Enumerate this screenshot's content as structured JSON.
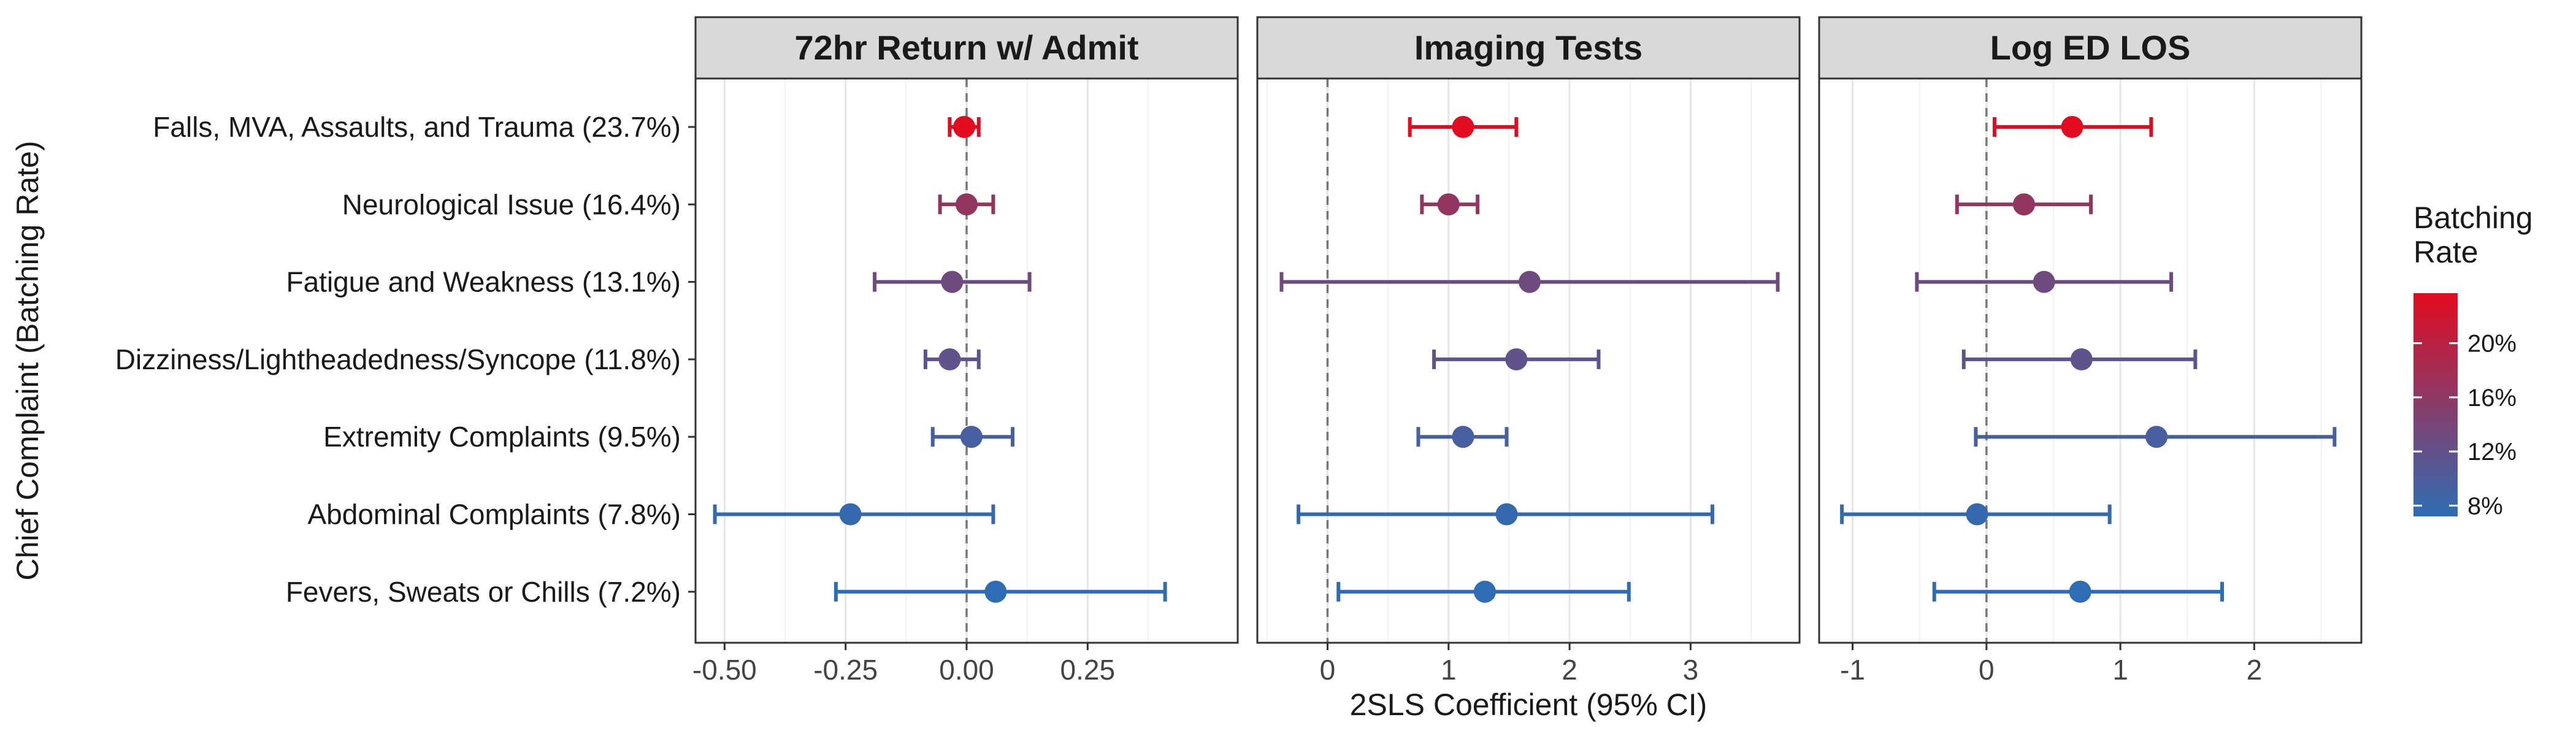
{
  "chart_data": {
    "type": "forest",
    "x_axis_title": "2SLS Coefficient (95% CI)",
    "y_axis_title": "Chief Complaint (Batching Rate)",
    "categories": [
      "Falls, MVA, Assaults, and Trauma (23.7%)",
      "Neurological Issue (16.4%)",
      "Fatigue and Weakness (13.1%)",
      "Dizziness/Lightheadedness/Syncope (11.8%)",
      "Extremity Complaints (9.5%)",
      "Abdominal Complaints (7.8%)",
      "Fevers, Sweats or Chills (7.2%)"
    ],
    "batching_rates": [
      23.7,
      16.4,
      13.1,
      11.8,
      9.5,
      7.8,
      7.2
    ],
    "reference_line_x": 0,
    "panels": [
      {
        "title": "72hr Return w/ Admit",
        "xlim": [
          -0.56,
          0.56
        ],
        "ticks": [
          -0.5,
          -0.25,
          0,
          0.25
        ],
        "tick_labels": [
          "-0.50",
          "-0.25",
          "0.00",
          "0.25"
        ],
        "estimates": [
          -0.005,
          0.0,
          -0.03,
          -0.035,
          0.01,
          -0.24,
          0.06
        ],
        "ci_low": [
          -0.035,
          -0.055,
          -0.19,
          -0.085,
          -0.07,
          -0.52,
          -0.27
        ],
        "ci_high": [
          0.025,
          0.055,
          0.13,
          0.025,
          0.095,
          0.055,
          0.41
        ]
      },
      {
        "title": "Imaging Tests",
        "xlim": [
          -0.58,
          3.9
        ],
        "ticks": [
          0,
          1,
          2,
          3
        ],
        "tick_labels": [
          "0",
          "1",
          "2",
          "3"
        ],
        "estimates": [
          1.12,
          1.0,
          1.67,
          1.56,
          1.12,
          1.48,
          1.3
        ],
        "ci_low": [
          0.68,
          0.78,
          -0.38,
          0.88,
          0.75,
          -0.24,
          0.09
        ],
        "ci_high": [
          1.56,
          1.24,
          3.72,
          2.24,
          1.48,
          3.18,
          2.49
        ]
      },
      {
        "title": "Log ED LOS",
        "xlim": [
          -1.25,
          2.8
        ],
        "ticks": [
          -1,
          0,
          1,
          2
        ],
        "tick_labels": [
          "-1",
          "0",
          "1",
          "2"
        ],
        "estimates": [
          0.64,
          0.28,
          0.43,
          0.71,
          1.27,
          -0.07,
          0.7
        ],
        "ci_low": [
          0.06,
          -0.22,
          -0.52,
          -0.17,
          -0.08,
          -1.08,
          -0.39
        ],
        "ci_high": [
          1.23,
          0.78,
          1.38,
          1.56,
          2.6,
          0.92,
          1.76
        ]
      }
    ],
    "legend": {
      "title_lines": [
        "Batching",
        "Rate"
      ],
      "ticks": [
        8,
        12,
        16,
        20
      ],
      "tick_labels": [
        "8%",
        "12%",
        "16%",
        "20%"
      ],
      "range": [
        7.2,
        23.7
      ],
      "color_low": "#2e6db4",
      "color_high": "#e20b20"
    },
    "grid": true,
    "legend_position": "right"
  }
}
